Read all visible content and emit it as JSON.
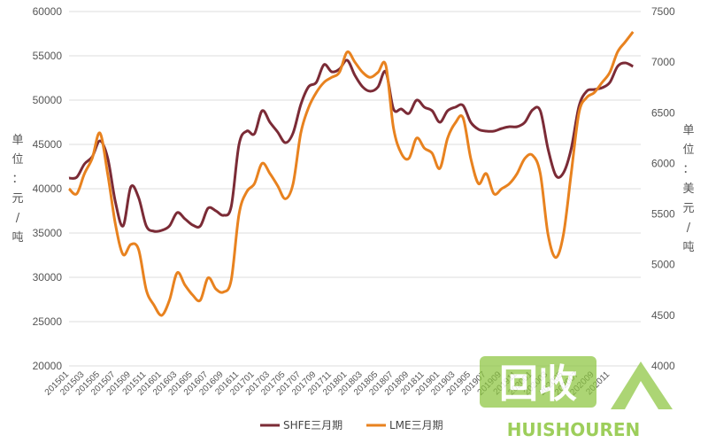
{
  "chart_data": {
    "type": "line",
    "title": "",
    "ylabel_left": "单位：元/吨",
    "ylabel_right": "单位：美元/吨",
    "ylim_left": [
      20000,
      60000
    ],
    "ylim_right": [
      4000,
      7500
    ],
    "yticks_left": [
      20000,
      25000,
      30000,
      35000,
      40000,
      45000,
      50000,
      55000,
      60000
    ],
    "yticks_right": [
      4000,
      4500,
      5000,
      5500,
      6000,
      6500,
      7000,
      7500
    ],
    "x_start": "2015-01",
    "x_end": "2021-03",
    "x_labels": [
      "201501",
      "201503",
      "201505",
      "201507",
      "201509",
      "201511",
      "201601",
      "201603",
      "201605",
      "201607",
      "201609",
      "201611",
      "201701",
      "201703",
      "201705",
      "201707",
      "201709",
      "201711",
      "201801",
      "201803",
      "201805",
      "201807",
      "201809",
      "201811",
      "201901",
      "201903",
      "201905",
      "201907",
      "201909",
      "201911",
      "202001",
      "202003",
      "202005",
      "202007",
      "202009",
      "202011"
    ],
    "grid": "horizontal",
    "legend_position": "bottom",
    "series": [
      {
        "name": "SHFE三月期",
        "axis": "left",
        "color": "#7b2b36",
        "x": [
          "2015-01",
          "2015-02",
          "2015-03",
          "2015-04",
          "2015-05",
          "2015-06",
          "2015-07",
          "2015-08",
          "2015-09",
          "2015-10",
          "2015-11",
          "2015-12",
          "2016-01",
          "2016-02",
          "2016-03",
          "2016-04",
          "2016-05",
          "2016-06",
          "2016-07",
          "2016-08",
          "2016-09",
          "2016-10",
          "2016-11",
          "2016-12",
          "2017-01",
          "2017-02",
          "2017-03",
          "2017-04",
          "2017-05",
          "2017-06",
          "2017-07",
          "2017-08",
          "2017-09",
          "2017-10",
          "2017-11",
          "2017-12",
          "2018-01",
          "2018-02",
          "2018-03",
          "2018-04",
          "2018-05",
          "2018-06",
          "2018-07",
          "2018-08",
          "2018-09",
          "2018-10",
          "2018-11",
          "2018-12",
          "2019-01",
          "2019-02",
          "2019-03",
          "2019-04",
          "2019-05",
          "2019-06",
          "2019-07",
          "2019-08",
          "2019-09",
          "2019-10",
          "2019-11",
          "2019-12",
          "2020-01",
          "2020-02",
          "2020-03",
          "2020-04",
          "2020-05",
          "2020-06",
          "2020-07",
          "2020-08",
          "2020-09",
          "2020-10",
          "2020-11",
          "2020-12",
          "2021-01",
          "2021-02"
        ],
        "values": [
          41200,
          41300,
          42800,
          43600,
          45400,
          43500,
          38500,
          35800,
          40200,
          39000,
          35800,
          35200,
          35300,
          35800,
          37300,
          36600,
          35900,
          35800,
          37800,
          37500,
          37000,
          38000,
          45000,
          46500,
          46200,
          48800,
          47500,
          46400,
          45200,
          46300,
          49500,
          51500,
          52000,
          54000,
          53200,
          53500,
          54500,
          52800,
          51500,
          51000,
          51500,
          53200,
          49000,
          49000,
          48500,
          50000,
          49200,
          48800,
          47500,
          48800,
          49200,
          49400,
          47500,
          46700,
          46500,
          46500,
          46800,
          47000,
          47000,
          47500,
          48900,
          48800,
          44500,
          41500,
          41800,
          44500,
          49300,
          51000,
          51200,
          51400,
          52000,
          53800,
          54200,
          53800
        ]
      },
      {
        "name": "LME三月期",
        "axis": "right",
        "color": "#e8821f",
        "x": [
          "2015-01",
          "2015-02",
          "2015-03",
          "2015-04",
          "2015-05",
          "2015-06",
          "2015-07",
          "2015-08",
          "2015-09",
          "2015-10",
          "2015-11",
          "2015-12",
          "2016-01",
          "2016-02",
          "2016-03",
          "2016-04",
          "2016-05",
          "2016-06",
          "2016-07",
          "2016-08",
          "2016-09",
          "2016-10",
          "2016-11",
          "2016-12",
          "2017-01",
          "2017-02",
          "2017-03",
          "2017-04",
          "2017-05",
          "2017-06",
          "2017-07",
          "2017-08",
          "2017-09",
          "2017-10",
          "2017-11",
          "2017-12",
          "2018-01",
          "2018-02",
          "2018-03",
          "2018-04",
          "2018-05",
          "2018-06",
          "2018-07",
          "2018-08",
          "2018-09",
          "2018-10",
          "2018-11",
          "2018-12",
          "2019-01",
          "2019-02",
          "2019-03",
          "2019-04",
          "2019-05",
          "2019-06",
          "2019-07",
          "2019-08",
          "2019-09",
          "2019-10",
          "2019-11",
          "2019-12",
          "2020-01",
          "2020-02",
          "2020-03",
          "2020-04",
          "2020-05",
          "2020-06",
          "2020-07",
          "2020-08",
          "2020-09",
          "2020-10",
          "2020-11",
          "2020-12",
          "2021-01",
          "2021-02"
        ],
        "values": [
          5750,
          5700,
          5900,
          6050,
          6300,
          5900,
          5400,
          5100,
          5200,
          5150,
          4750,
          4600,
          4500,
          4650,
          4920,
          4800,
          4700,
          4650,
          4870,
          4760,
          4730,
          4850,
          5500,
          5720,
          5800,
          6000,
          5900,
          5780,
          5650,
          5800,
          6300,
          6550,
          6700,
          6800,
          6850,
          6900,
          7100,
          7000,
          6900,
          6850,
          6900,
          6970,
          6350,
          6100,
          6050,
          6250,
          6150,
          6100,
          5950,
          6250,
          6400,
          6450,
          6050,
          5800,
          5900,
          5700,
          5750,
          5800,
          5900,
          6050,
          6080,
          5900,
          5300,
          5070,
          5300,
          5900,
          6500,
          6650,
          6700,
          6800,
          6900,
          7100,
          7200,
          7300
        ]
      }
    ]
  },
  "watermark": {
    "logo_text": "回收",
    "domain_text": "HUISHOUREN"
  }
}
